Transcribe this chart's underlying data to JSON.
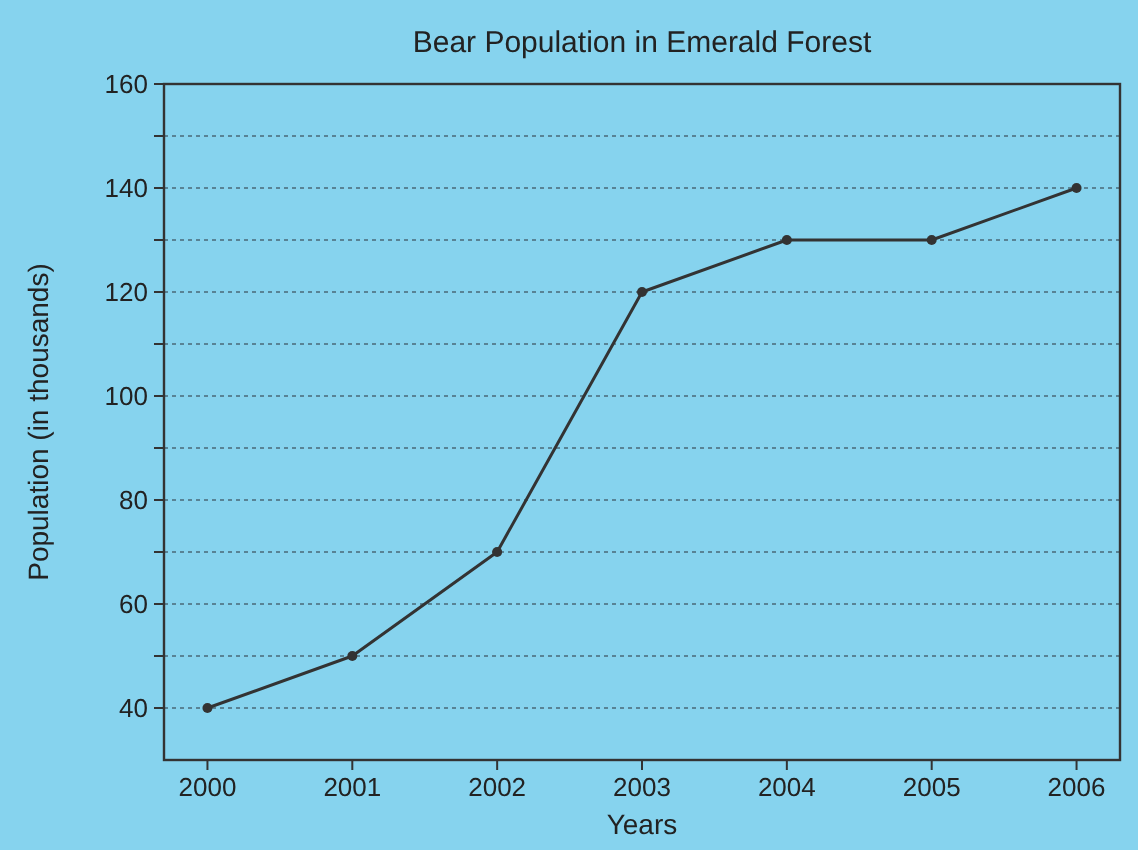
{
  "chart_data": {
    "type": "line",
    "title": "Bear Population in Emerald Forest",
    "xlabel": "Years",
    "ylabel": "Population (in thousands)",
    "categories": [
      "2000",
      "2001",
      "2002",
      "2003",
      "2004",
      "2005",
      "2006"
    ],
    "series": [
      {
        "color": "#333333",
        "values": [
          40,
          50,
          70,
          120,
          130,
          130,
          140
        ]
      }
    ],
    "ylim": [
      30,
      160
    ],
    "yticks": [
      40,
      {
        "value": 50,
        "label": null
      },
      60,
      {
        "value": 70,
        "label": null
      },
      80,
      {
        "value": 90,
        "label": null
      },
      100,
      {
        "value": 110,
        "label": null
      },
      120,
      {
        "value": 130,
        "label": null
      },
      140,
      {
        "value": 150,
        "label": null
      },
      160
    ],
    "grid": "y",
    "marker": "circle",
    "line_style": "solid"
  }
}
